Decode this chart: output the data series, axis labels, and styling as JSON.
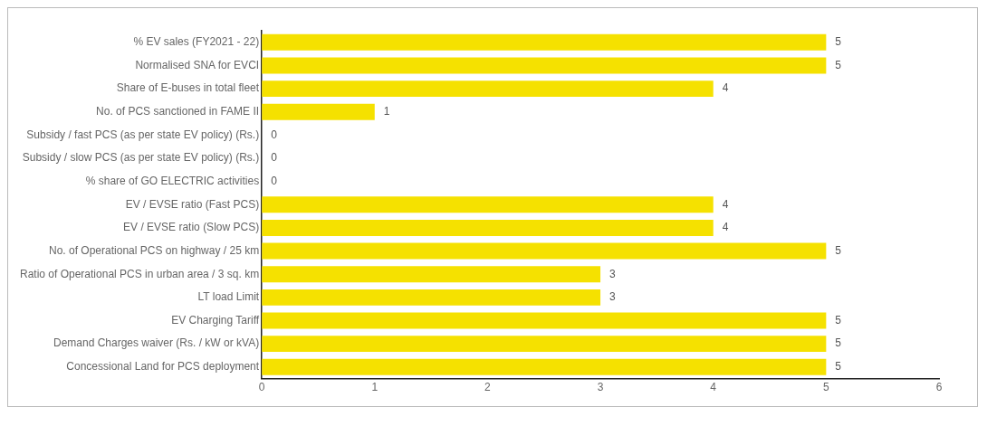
{
  "chart_data": {
    "type": "bar",
    "orientation": "horizontal",
    "categories": [
      "% EV sales (FY2021 - 22)",
      "Normalised SNA for EVCI",
      "Share of E-buses in total fleet",
      "No. of PCS sanctioned in FAME II",
      "Subsidy / fast PCS (as per state EV policy) (Rs.)",
      "Subsidy / slow PCS (as per state EV policy) (Rs.)",
      "% share of GO ELECTRIC activities",
      "EV / EVSE ratio (Fast PCS)",
      "EV / EVSE ratio (Slow PCS)",
      "No. of Operational PCS on highway / 25 km",
      "Ratio of Operational PCS in urban area / 3 sq. km",
      "LT load Limit",
      "EV Charging Tariff",
      "Demand Charges waiver (Rs. / kW or kVA)",
      "Concessional Land for PCS deployment"
    ],
    "values": [
      5,
      5,
      4,
      1,
      0,
      0,
      0,
      4,
      4,
      5,
      3,
      3,
      5,
      5,
      5
    ],
    "color": "#f5e100",
    "xlim": [
      0,
      6
    ],
    "xticks": [
      0,
      1,
      2,
      3,
      4,
      5,
      6
    ],
    "data_labels": true,
    "grid": false,
    "legend": false
  }
}
